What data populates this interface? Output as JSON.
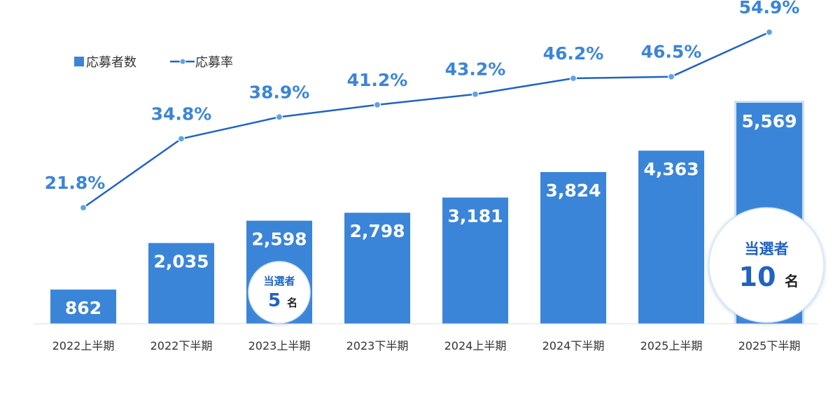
{
  "chart_data": {
    "type": "bar",
    "categories": [
      "2022上半期",
      "2022下半期",
      "2023上半期",
      "2023下半期",
      "2024上半期",
      "2024下半期",
      "2025上半期",
      "2025下半期"
    ],
    "series": [
      {
        "name": "応募者数",
        "type": "bar",
        "values": [
          862,
          2035,
          2598,
          2798,
          3181,
          3824,
          4363,
          5569
        ],
        "labels": [
          "862",
          "2,035",
          "2,598",
          "2,798",
          "3,181",
          "3,824",
          "4,363",
          "5,569"
        ],
        "color": "#3b85d8"
      },
      {
        "name": "応募率",
        "type": "line",
        "values": [
          21.8,
          34.8,
          38.9,
          41.2,
          43.2,
          46.2,
          46.5,
          54.9
        ],
        "labels": [
          "21.8%",
          "34.8%",
          "38.9%",
          "41.2%",
          "43.2%",
          "46.2%",
          "46.5%",
          "54.9%"
        ],
        "color": "#1f63c4",
        "label_color": "#3b85d8"
      }
    ],
    "ylim": [
      0,
      6100
    ],
    "rate_range": [
      0,
      60
    ],
    "legend_position": "top-left",
    "grid": false,
    "annotations": [
      {
        "category_index": 2,
        "title": "当選者",
        "number": "5",
        "unit": "名",
        "size": "small"
      },
      {
        "category_index": 7,
        "title": "当選者",
        "number": "10",
        "unit": "名",
        "size": "large"
      }
    ]
  }
}
